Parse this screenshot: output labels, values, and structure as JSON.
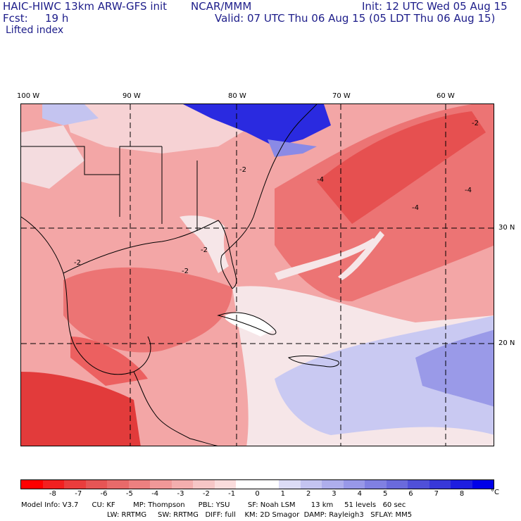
{
  "header": {
    "title": "HAIC-HIWC 13km ARW-GFS init",
    "agency": "NCAR/MMM",
    "init": "Init: 12 UTC Wed 05 Aug 15",
    "fcst_label": "Fcst:",
    "fcst_value": "19 h",
    "valid": "Valid: 07 UTC Thu 06 Aug 15 (05 LDT Thu 06 Aug 15)",
    "field": "Lifted index"
  },
  "map": {
    "lon_labels": [
      "100 W",
      "90 W",
      "80 W",
      "70 W",
      "60 W"
    ],
    "lat_labels": [
      "30 N",
      "20 N"
    ],
    "contour_labels": [
      "-2",
      "-4",
      "-2",
      "-2",
      "-4",
      "-2",
      "-2",
      "-4"
    ],
    "colors": {
      "ocean_pos": "#c9c9f2",
      "neutral": "#f6e6e8",
      "light_red": "#f3a6a6",
      "mid_red": "#ec7474",
      "deep_red": "#e23b3b",
      "blue": "#2020e0"
    }
  },
  "colorbar": {
    "ticks": [
      "-8",
      "-7",
      "-6",
      "-5",
      "-4",
      "-3",
      "-2",
      "-1",
      "0",
      "1",
      "2",
      "3",
      "4",
      "5",
      "6",
      "7",
      "8"
    ],
    "unit": "°C",
    "colors": [
      "#ff0000",
      "#f22020",
      "#ea3d3d",
      "#e65555",
      "#e86a6a",
      "#ec8080",
      "#f09898",
      "#f3aeae",
      "#f6c6c6",
      "#fadcdc",
      "#ffffff",
      "#ffffff",
      "#dcdcf6",
      "#c4c4f0",
      "#aeaeec",
      "#9898e8",
      "#8080e2",
      "#6a6adc",
      "#5050d8",
      "#3838d8",
      "#1e1ee0",
      "#0000e8"
    ]
  },
  "footer": {
    "line1": "Model Info: V3.7      CU: KF        MP: Thompson      PBL: YSU        SF: Noah LSM       13 km     51 levels   60 sec",
    "line2": "LW: RRTMG     SW: RRTMG   DIFF: full    KM: 2D Smagor  DAMP: Rayleigh3   SFLAY: MM5"
  }
}
